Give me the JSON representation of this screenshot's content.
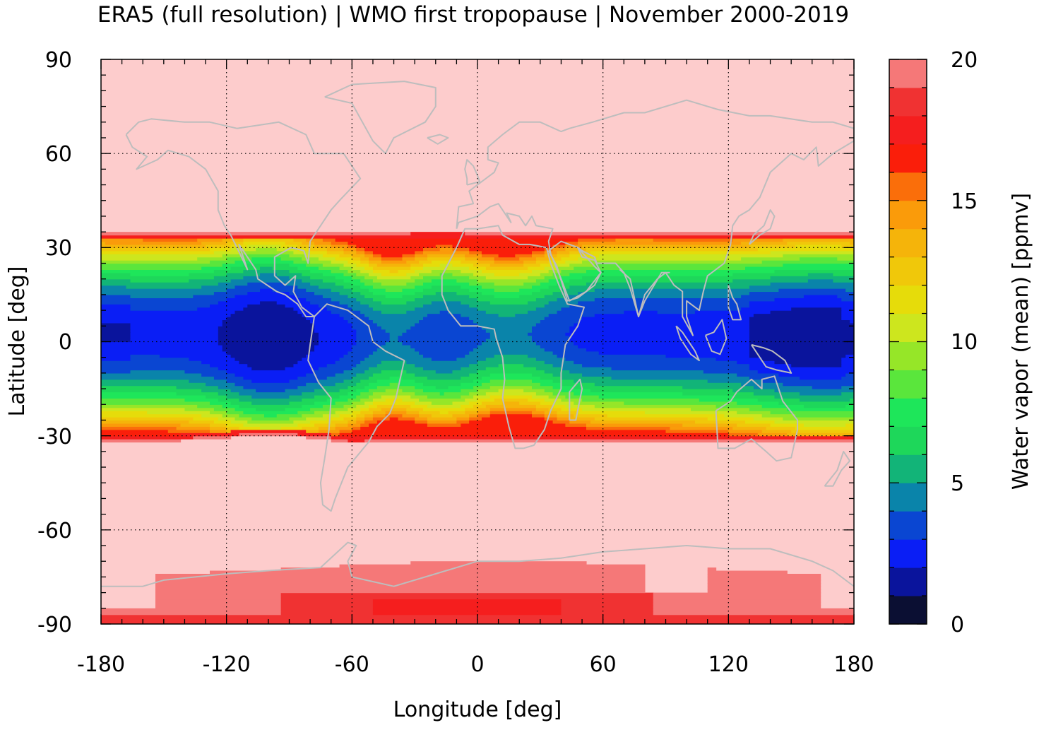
{
  "title": "ERA5 (full resolution) | WMO first tropopause | November 2000-2019",
  "map": {
    "xlabel": "Longitude [deg]",
    "ylabel": "Latitude [deg]",
    "xlim": [
      -180,
      180
    ],
    "ylim": [
      -90,
      90
    ],
    "xticks": [
      "-180",
      "-120",
      "-60",
      "0",
      "60",
      "120",
      "180"
    ],
    "yticks": [
      "90",
      "60",
      "30",
      "0",
      "-30",
      "-60",
      "-90"
    ],
    "grid": "dotted, every 60° longitude and 30° latitude",
    "background_value_color": "#fdcccc",
    "coastline_color": "#bdbdbd"
  },
  "colorbar": {
    "label": "Water vapor (mean) [ppmv]",
    "range": [
      0,
      20
    ],
    "ticks": [
      "20",
      "15",
      "10",
      "5",
      "0"
    ],
    "levels": [
      {
        "from": 0,
        "to": 1,
        "color": "#0b0f33"
      },
      {
        "from": 1,
        "to": 2,
        "color": "#0a149c"
      },
      {
        "from": 2,
        "to": 3,
        "color": "#0a1ef5"
      },
      {
        "from": 3,
        "to": 4,
        "color": "#0a46d2"
      },
      {
        "from": 4,
        "to": 5,
        "color": "#0a84aa"
      },
      {
        "from": 5,
        "to": 6,
        "color": "#12b478"
      },
      {
        "from": 6,
        "to": 7,
        "color": "#1ed75a"
      },
      {
        "from": 7,
        "to": 8,
        "color": "#1ee65a"
      },
      {
        "from": 8,
        "to": 9,
        "color": "#5ae63c"
      },
      {
        "from": 9,
        "to": 10,
        "color": "#96e628"
      },
      {
        "from": 10,
        "to": 11,
        "color": "#cde61e"
      },
      {
        "from": 11,
        "to": 12,
        "color": "#e6dc0a"
      },
      {
        "from": 12,
        "to": 13,
        "color": "#f0c80a"
      },
      {
        "from": 13,
        "to": 14,
        "color": "#f5b40a"
      },
      {
        "from": 14,
        "to": 15,
        "color": "#fa9b0a"
      },
      {
        "from": 15,
        "to": 16,
        "color": "#fa6e0a"
      },
      {
        "from": 16,
        "to": 17,
        "color": "#fa1e0a"
      },
      {
        "from": 17,
        "to": 18,
        "color": "#f51e1e"
      },
      {
        "from": 18,
        "to": 19,
        "color": "#f03232"
      },
      {
        "from": 19,
        "to": 20,
        "color": "#f57878"
      },
      {
        "from": 20,
        "to": 21,
        "color": "#fdcccc"
      }
    ]
  },
  "field_summary": {
    "tropical_band_edges_deg": [
      -30,
      33
    ],
    "tropical_minimum_ppmv": 2.5,
    "outside_band_ppmv": 20,
    "antarctic_core_ppmv": 17.5
  }
}
